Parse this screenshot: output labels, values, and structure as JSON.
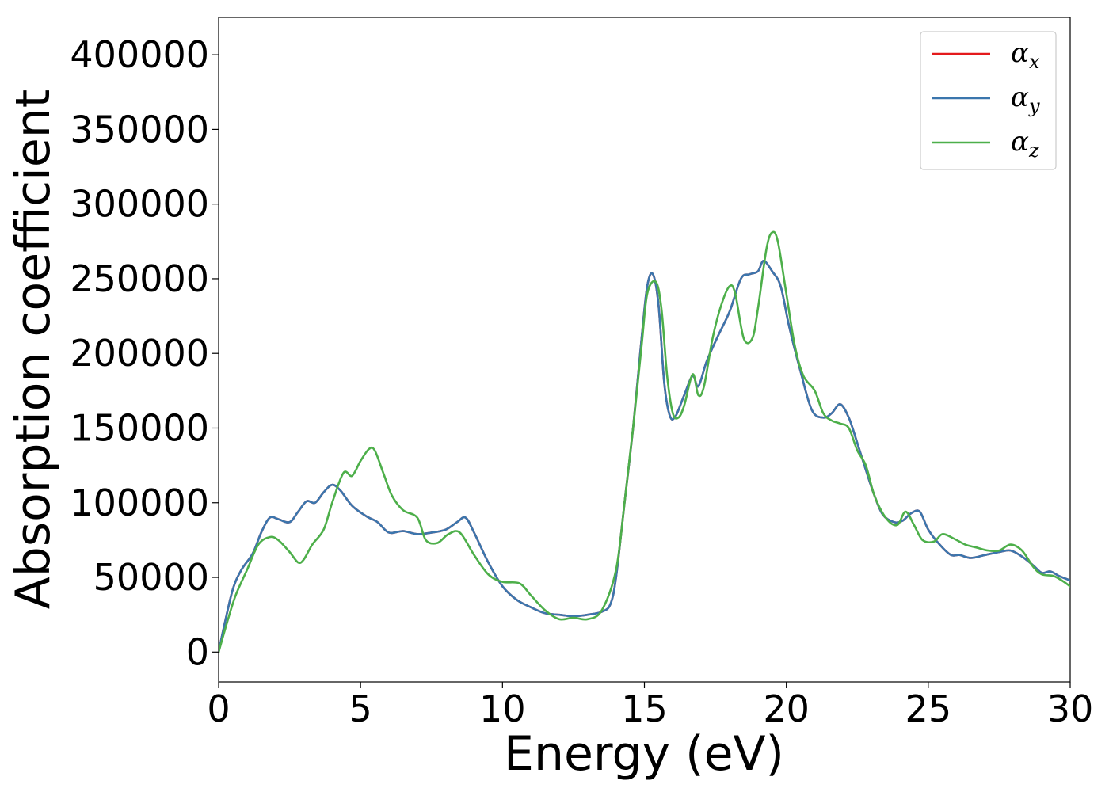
{
  "chart_data": {
    "type": "line",
    "xlabel": "Energy (eV)",
    "ylabel": "Absorption coefficient",
    "xlim": [
      0,
      30
    ],
    "ylim": [
      -20000,
      425000
    ],
    "xticks": [
      0,
      5,
      10,
      15,
      20,
      25,
      30
    ],
    "yticks": [
      0,
      50000,
      100000,
      150000,
      200000,
      250000,
      300000,
      350000,
      400000
    ],
    "grid": false,
    "legend_position": "top-right",
    "series": [
      {
        "name": "α_x",
        "legend_symbol": "α",
        "legend_subscript": "x",
        "color": "#e41a1c",
        "x": [
          0,
          0.2,
          0.5,
          0.8,
          1.2,
          1.5,
          1.8,
          2.1,
          2.5,
          2.8,
          3.1,
          3.4,
          3.7,
          4.0,
          4.3,
          4.7,
          5.2,
          5.6,
          6.0,
          6.5,
          7.0,
          7.5,
          8.0,
          8.4,
          8.7,
          9.0,
          9.5,
          10.0,
          10.5,
          11.0,
          11.5,
          12.0,
          12.5,
          13.0,
          13.5,
          13.8,
          14.0,
          14.3,
          14.6,
          14.9,
          15.1,
          15.3,
          15.5,
          15.7,
          15.9,
          16.1,
          16.4,
          16.7,
          16.9,
          17.2,
          17.6,
          18.0,
          18.4,
          18.7,
          19.0,
          19.2,
          19.5,
          19.8,
          20.1,
          20.5,
          20.9,
          21.3,
          21.6,
          21.9,
          22.2,
          22.5,
          22.8,
          23.1,
          23.4,
          23.8,
          24.1,
          24.4,
          24.7,
          25.0,
          25.4,
          25.8,
          26.1,
          26.5,
          27.0,
          27.5,
          27.9,
          28.3,
          28.7,
          29.0,
          29.3,
          29.6,
          30.0
        ],
        "y": [
          0,
          18000,
          42000,
          55000,
          66000,
          80000,
          90000,
          89000,
          87000,
          94000,
          101000,
          100000,
          107000,
          112000,
          108000,
          98000,
          91000,
          87000,
          80000,
          81000,
          79000,
          80000,
          82000,
          87000,
          90000,
          80000,
          60000,
          44000,
          35000,
          30000,
          26000,
          25000,
          24000,
          25000,
          27000,
          32000,
          50000,
          100000,
          150000,
          210000,
          245000,
          253000,
          232000,
          180000,
          158000,
          158000,
          172000,
          185000,
          178000,
          195000,
          212000,
          228000,
          250000,
          253000,
          255000,
          262000,
          255000,
          245000,
          218000,
          188000,
          162000,
          157000,
          160000,
          166000,
          157000,
          140000,
          122000,
          105000,
          92000,
          87000,
          88000,
          93000,
          94000,
          82000,
          72000,
          65000,
          65000,
          63000,
          65000,
          67000,
          68000,
          64000,
          58000,
          53000,
          54000,
          51000,
          48000
        ]
      },
      {
        "name": "α_y",
        "legend_symbol": "α",
        "legend_subscript": "y",
        "color": "#3b76ad",
        "x": [
          0,
          0.2,
          0.5,
          0.8,
          1.2,
          1.5,
          1.8,
          2.1,
          2.5,
          2.8,
          3.1,
          3.4,
          3.7,
          4.0,
          4.3,
          4.7,
          5.2,
          5.6,
          6.0,
          6.5,
          7.0,
          7.5,
          8.0,
          8.4,
          8.7,
          9.0,
          9.5,
          10.0,
          10.5,
          11.0,
          11.5,
          12.0,
          12.5,
          13.0,
          13.5,
          13.8,
          14.0,
          14.3,
          14.6,
          14.9,
          15.1,
          15.3,
          15.5,
          15.7,
          15.9,
          16.1,
          16.4,
          16.7,
          16.9,
          17.2,
          17.6,
          18.0,
          18.4,
          18.7,
          19.0,
          19.2,
          19.5,
          19.8,
          20.1,
          20.5,
          20.9,
          21.3,
          21.6,
          21.9,
          22.2,
          22.5,
          22.8,
          23.1,
          23.4,
          23.8,
          24.1,
          24.4,
          24.7,
          25.0,
          25.4,
          25.8,
          26.1,
          26.5,
          27.0,
          27.5,
          27.9,
          28.3,
          28.7,
          29.0,
          29.3,
          29.6,
          30.0
        ],
        "y": [
          0,
          18000,
          42000,
          55000,
          66000,
          80000,
          90000,
          89000,
          87000,
          94000,
          101000,
          100000,
          107000,
          112000,
          108000,
          98000,
          91000,
          87000,
          80000,
          81000,
          79000,
          80000,
          82000,
          87000,
          90000,
          80000,
          60000,
          44000,
          35000,
          30000,
          26000,
          25000,
          24000,
          25000,
          27000,
          32000,
          50000,
          100000,
          150000,
          210000,
          245000,
          253000,
          232000,
          180000,
          158000,
          158000,
          172000,
          185000,
          178000,
          195000,
          212000,
          228000,
          250000,
          253000,
          255000,
          262000,
          255000,
          245000,
          218000,
          188000,
          162000,
          157000,
          160000,
          166000,
          157000,
          140000,
          122000,
          105000,
          92000,
          87000,
          88000,
          93000,
          94000,
          82000,
          72000,
          65000,
          65000,
          63000,
          65000,
          67000,
          68000,
          64000,
          58000,
          53000,
          54000,
          51000,
          48000
        ]
      },
      {
        "name": "α_z",
        "legend_symbol": "α",
        "legend_subscript": "z",
        "color": "#4daf4a",
        "x": [
          0,
          0.3,
          0.6,
          1.0,
          1.4,
          1.8,
          2.1,
          2.5,
          2.8,
          3.0,
          3.3,
          3.7,
          4.0,
          4.4,
          4.7,
          5.0,
          5.3,
          5.5,
          5.8,
          6.1,
          6.5,
          7.0,
          7.3,
          7.7,
          8.1,
          8.5,
          9.0,
          9.5,
          10.0,
          10.6,
          11.0,
          11.5,
          12.0,
          12.5,
          13.0,
          13.5,
          14.0,
          14.3,
          14.6,
          14.9,
          15.1,
          15.4,
          15.6,
          15.8,
          16.0,
          16.2,
          16.4,
          16.7,
          16.9,
          17.1,
          17.4,
          17.7,
          18.0,
          18.2,
          18.5,
          18.8,
          19.0,
          19.3,
          19.5,
          19.7,
          20.0,
          20.3,
          20.6,
          21.0,
          21.3,
          21.6,
          21.9,
          22.2,
          22.5,
          22.8,
          23.1,
          23.5,
          23.9,
          24.2,
          24.5,
          24.8,
          25.2,
          25.5,
          25.9,
          26.3,
          26.7,
          27.1,
          27.5,
          27.9,
          28.3,
          28.7,
          29.0,
          29.4,
          29.7,
          30.0
        ],
        "y": [
          0,
          20000,
          38000,
          55000,
          72000,
          77000,
          75000,
          67000,
          60000,
          62000,
          72000,
          82000,
          100000,
          120000,
          118000,
          128000,
          136000,
          135000,
          120000,
          105000,
          95000,
          90000,
          75000,
          73000,
          79000,
          80000,
          65000,
          52000,
          47000,
          46000,
          38000,
          28000,
          22000,
          23000,
          22000,
          28000,
          55000,
          100000,
          150000,
          205000,
          240000,
          248000,
          230000,
          185000,
          160000,
          157000,
          165000,
          186000,
          172000,
          178000,
          210000,
          232000,
          245000,
          240000,
          210000,
          210000,
          230000,
          270000,
          281000,
          275000,
          240000,
          205000,
          185000,
          175000,
          160000,
          155000,
          153000,
          150000,
          135000,
          125000,
          105000,
          90000,
          85000,
          94000,
          85000,
          75000,
          74000,
          79000,
          76000,
          72000,
          70000,
          68000,
          68000,
          72000,
          68000,
          57000,
          52000,
          51000,
          48000,
          44000
        ]
      }
    ]
  }
}
